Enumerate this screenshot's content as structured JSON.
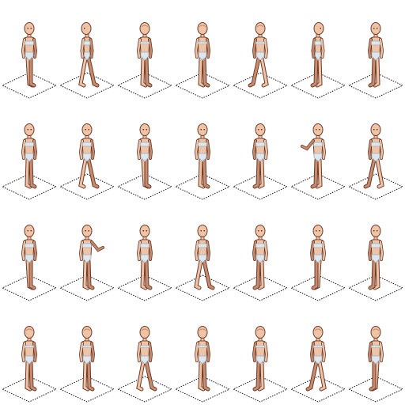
{
  "sheet": {
    "columns": 7,
    "rows": 4,
    "background": "#ffffff"
  },
  "palette": {
    "skin": "#efc4a6",
    "skin_shadow": "#c98b6e",
    "outline": "#6b3a2a",
    "underwear": "#dfe7ec",
    "underwear_shadow": "#9fb0bb",
    "tile_outline": "#111111"
  },
  "frames": [
    {
      "name": "frame-r1-c1",
      "facing": "front-left",
      "pose": "step"
    },
    {
      "name": "frame-r1-c2",
      "facing": "left",
      "pose": "walk"
    },
    {
      "name": "frame-r1-c3",
      "facing": "back-left",
      "pose": "stand"
    },
    {
      "name": "frame-r1-c4",
      "facing": "back",
      "pose": "stand"
    },
    {
      "name": "frame-r1-c5",
      "facing": "back-right",
      "pose": "walk"
    },
    {
      "name": "frame-r1-c6",
      "facing": "right",
      "pose": "stand"
    },
    {
      "name": "frame-r1-c7",
      "facing": "front-right",
      "pose": "stand"
    },
    {
      "name": "frame-r2-c1",
      "facing": "front-left",
      "pose": "stand"
    },
    {
      "name": "frame-r2-c2",
      "facing": "front-left",
      "pose": "walk"
    },
    {
      "name": "frame-r2-c3",
      "facing": "front",
      "pose": "step"
    },
    {
      "name": "frame-r2-c4",
      "facing": "front",
      "pose": "stand"
    },
    {
      "name": "frame-r2-c5",
      "facing": "front-right",
      "pose": "stand"
    },
    {
      "name": "frame-r2-c6",
      "facing": "front-right",
      "pose": "wave"
    },
    {
      "name": "frame-r2-c7",
      "facing": "front-right",
      "pose": "walk"
    },
    {
      "name": "frame-r3-c1",
      "facing": "front-left",
      "pose": "step"
    },
    {
      "name": "frame-r3-c2",
      "facing": "front-left",
      "pose": "wave"
    },
    {
      "name": "frame-r3-c3",
      "facing": "front",
      "pose": "stand"
    },
    {
      "name": "frame-r3-c4",
      "facing": "front",
      "pose": "walk"
    },
    {
      "name": "frame-r3-c5",
      "facing": "front-right",
      "pose": "stand"
    },
    {
      "name": "frame-r3-c6",
      "facing": "front-right",
      "pose": "step"
    },
    {
      "name": "frame-r3-c7",
      "facing": "front-right",
      "pose": "stand"
    },
    {
      "name": "frame-r4-c1",
      "facing": "back-left",
      "pose": "stand"
    },
    {
      "name": "frame-r4-c2",
      "facing": "back-left",
      "pose": "stand"
    },
    {
      "name": "frame-r4-c3",
      "facing": "back",
      "pose": "walk"
    },
    {
      "name": "frame-r4-c4",
      "facing": "back",
      "pose": "stand"
    },
    {
      "name": "frame-r4-c5",
      "facing": "back-right",
      "pose": "stand"
    },
    {
      "name": "frame-r4-c6",
      "facing": "back-right",
      "pose": "walk"
    },
    {
      "name": "frame-r4-c7",
      "facing": "back-right",
      "pose": "step"
    }
  ]
}
